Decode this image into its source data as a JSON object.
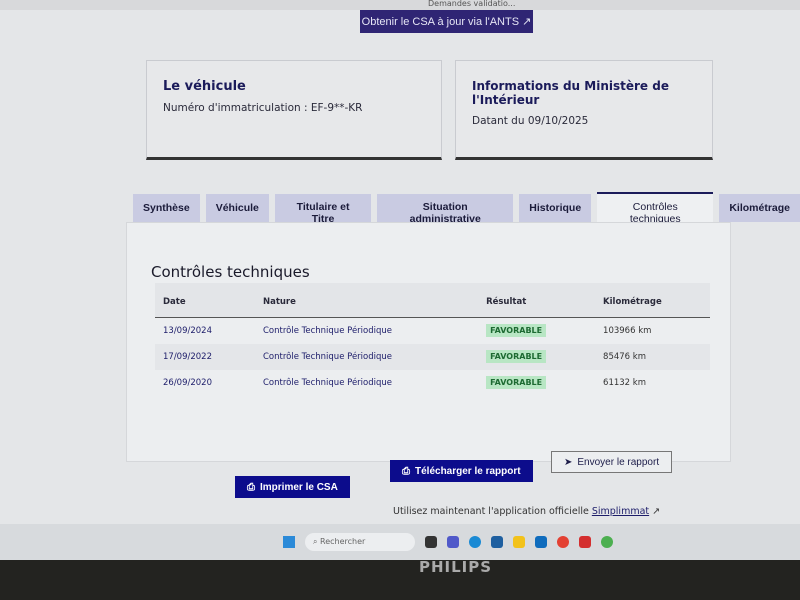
{
  "bookmarks": [
    "Demandes validatio..."
  ],
  "ants_button": "Obtenir le CSA à jour via l'ANTS ↗",
  "vehicle_card": {
    "title": "Le véhicule",
    "plate": "Numéro d'immatriculation : EF-9**-KR"
  },
  "ministry_card": {
    "title": "Informations du Ministère de l'Intérieur",
    "date": "Datant du 09/10/2025"
  },
  "tabs": [
    {
      "label": "Synthèse",
      "active": false
    },
    {
      "label": "Véhicule",
      "active": false
    },
    {
      "label": "Titulaire et Titre",
      "active": false
    },
    {
      "label": "Situation administrative",
      "active": false
    },
    {
      "label": "Historique",
      "active": false
    },
    {
      "label": "Contrôles techniques",
      "active": true
    },
    {
      "label": "Kilométrage",
      "active": false
    }
  ],
  "section_title": "Contrôles techniques",
  "table": {
    "headers": [
      "Date",
      "Nature",
      "Résultat",
      "Kilométrage"
    ],
    "rows": [
      {
        "date": "13/09/2024",
        "nature": "Contrôle Technique Périodique",
        "result": "FAVORABLE",
        "km": "103966 km"
      },
      {
        "date": "17/09/2022",
        "nature": "Contrôle Technique Périodique",
        "result": "FAVORABLE",
        "km": "85476 km"
      },
      {
        "date": "26/09/2020",
        "nature": "Contrôle Technique Périodique",
        "result": "FAVORABLE",
        "km": "61132 km"
      }
    ]
  },
  "buttons": {
    "print": "Imprimer le CSA",
    "download": "Télécharger le rapport",
    "send": "Envoyer le rapport"
  },
  "promo": {
    "text": "Utilisez maintenant l'application officielle ",
    "link": "Simplimmat"
  },
  "taskbar": {
    "search_placeholder": "Rechercher"
  },
  "monitor_brand": "PHILIPS",
  "colors": {
    "primary": "#0c0c8c",
    "badge_bg": "#b8e6c4",
    "badge_text": "#1d6a32"
  }
}
